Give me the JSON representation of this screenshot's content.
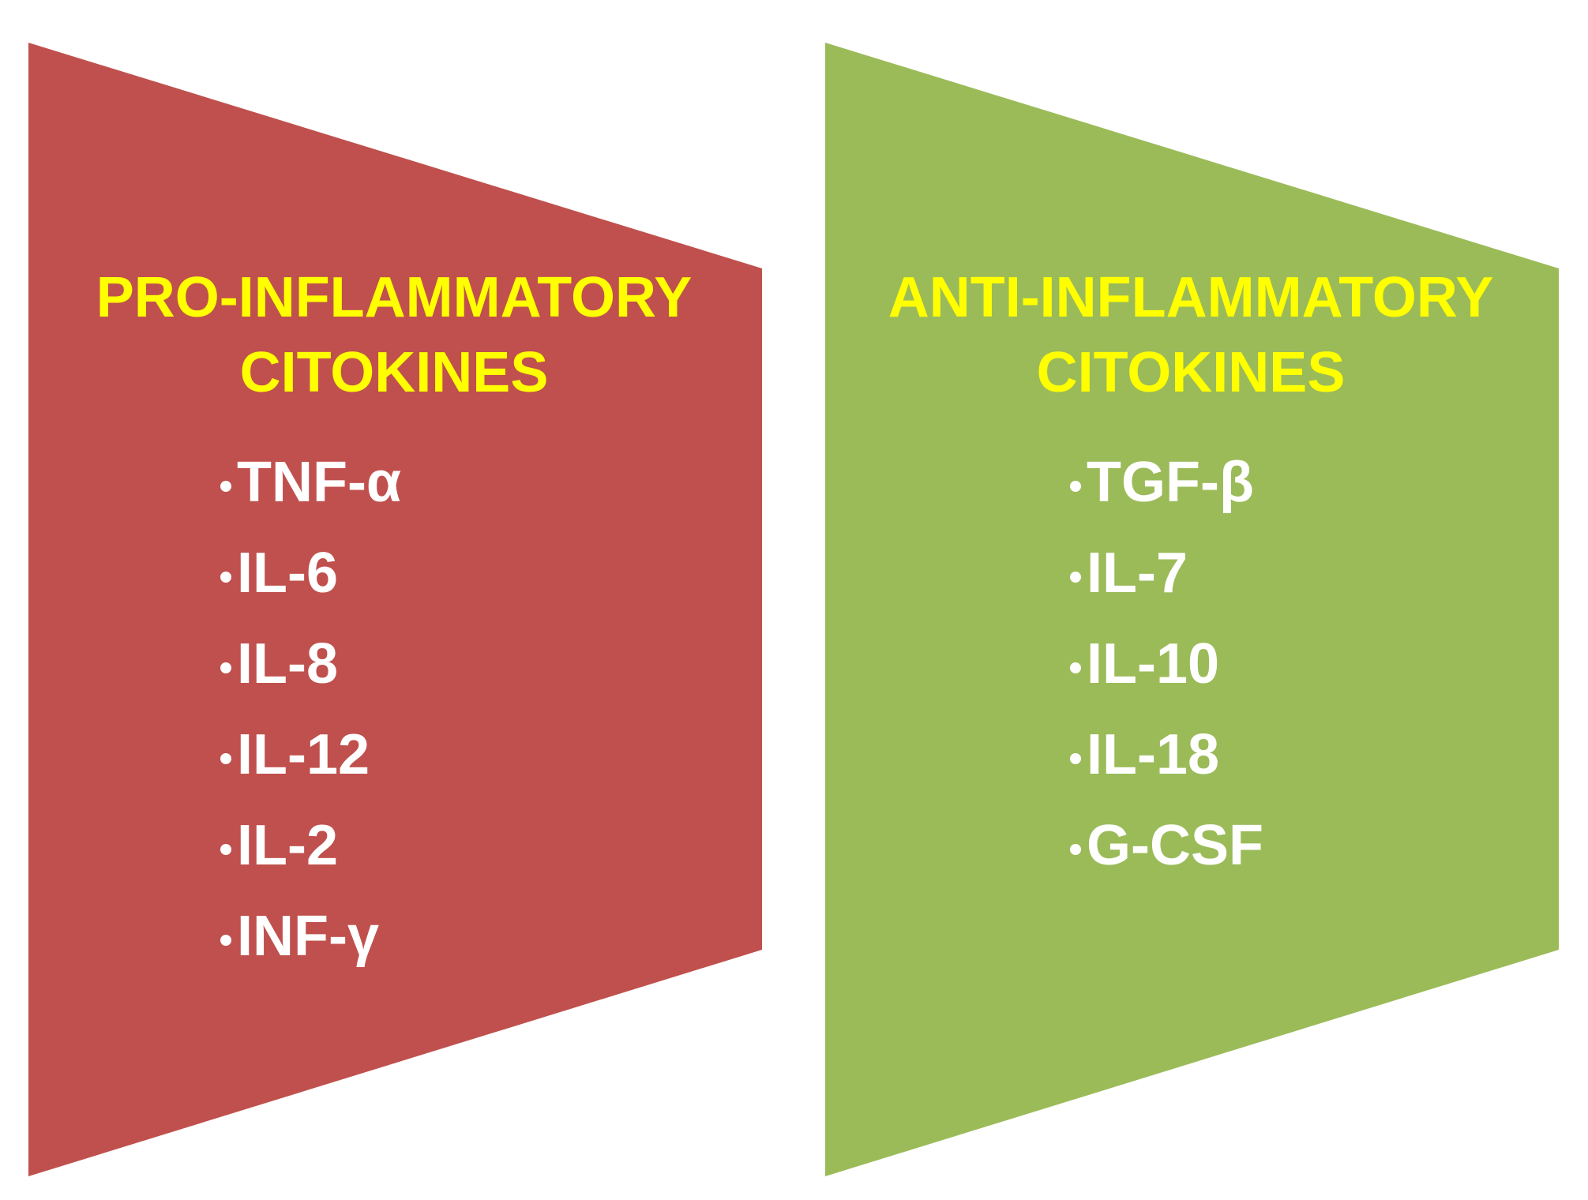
{
  "panels": [
    {
      "title": [
        "PRO-INFLAMMATORY",
        "CITOKINES"
      ],
      "items": [
        "TNF-α",
        "IL-6",
        "IL-8",
        "IL-12",
        "IL-2",
        "INF-γ"
      ]
    },
    {
      "title": [
        "ANTI-INFLAMMATORY",
        "CITOKINES"
      ],
      "items": [
        "TGF-β",
        "IL-7",
        "IL-10",
        "IL-18",
        "G-CSF"
      ]
    }
  ]
}
